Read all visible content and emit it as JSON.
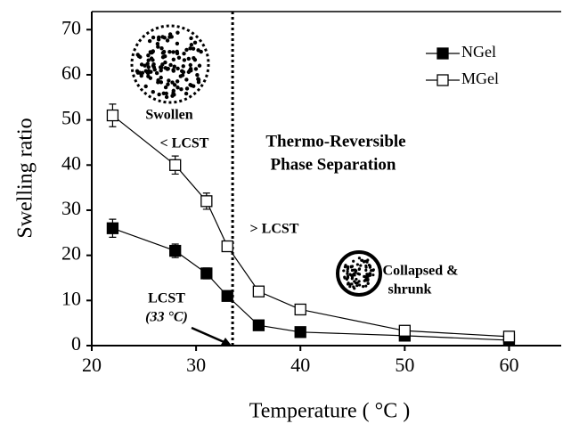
{
  "chart_data": {
    "type": "line",
    "xlabel": "Temperature ( °C )",
    "ylabel": "Swelling ratio",
    "xlim": [
      20,
      65
    ],
    "xticks": [
      20,
      30,
      40,
      50,
      60
    ],
    "ylim": [
      0,
      74
    ],
    "yticks": [
      0,
      10,
      20,
      30,
      40,
      50,
      60,
      70
    ],
    "legend_position": "upper right",
    "vline": 33.5,
    "series": [
      {
        "name": "NGel",
        "color": "#000000",
        "marker": "filled-square",
        "x": [
          22,
          28,
          31,
          33,
          36,
          40,
          50,
          60
        ],
        "values": [
          26,
          21,
          16,
          11,
          4.5,
          3,
          2.2,
          1.2
        ],
        "errors": [
          2,
          1.5,
          1.2,
          0.8,
          0.5,
          0.3,
          0.3,
          0.3
        ]
      },
      {
        "name": "MGel",
        "color": "#000000",
        "marker": "open-square",
        "x": [
          22,
          28,
          31,
          33,
          36,
          40,
          50,
          60
        ],
        "values": [
          51,
          40,
          32,
          22,
          12,
          8,
          3.3,
          2
        ],
        "errors": [
          2.5,
          2,
          1.8,
          0.8,
          0.5,
          0.5,
          0.5,
          0.5
        ]
      }
    ],
    "annotations": [
      "Swollen",
      "< LCST",
      "Thermo-Reversible",
      "Phase Separation",
      "> LCST",
      "Collapsed &",
      "shrunk",
      "LCST",
      "(33 °C)"
    ]
  }
}
